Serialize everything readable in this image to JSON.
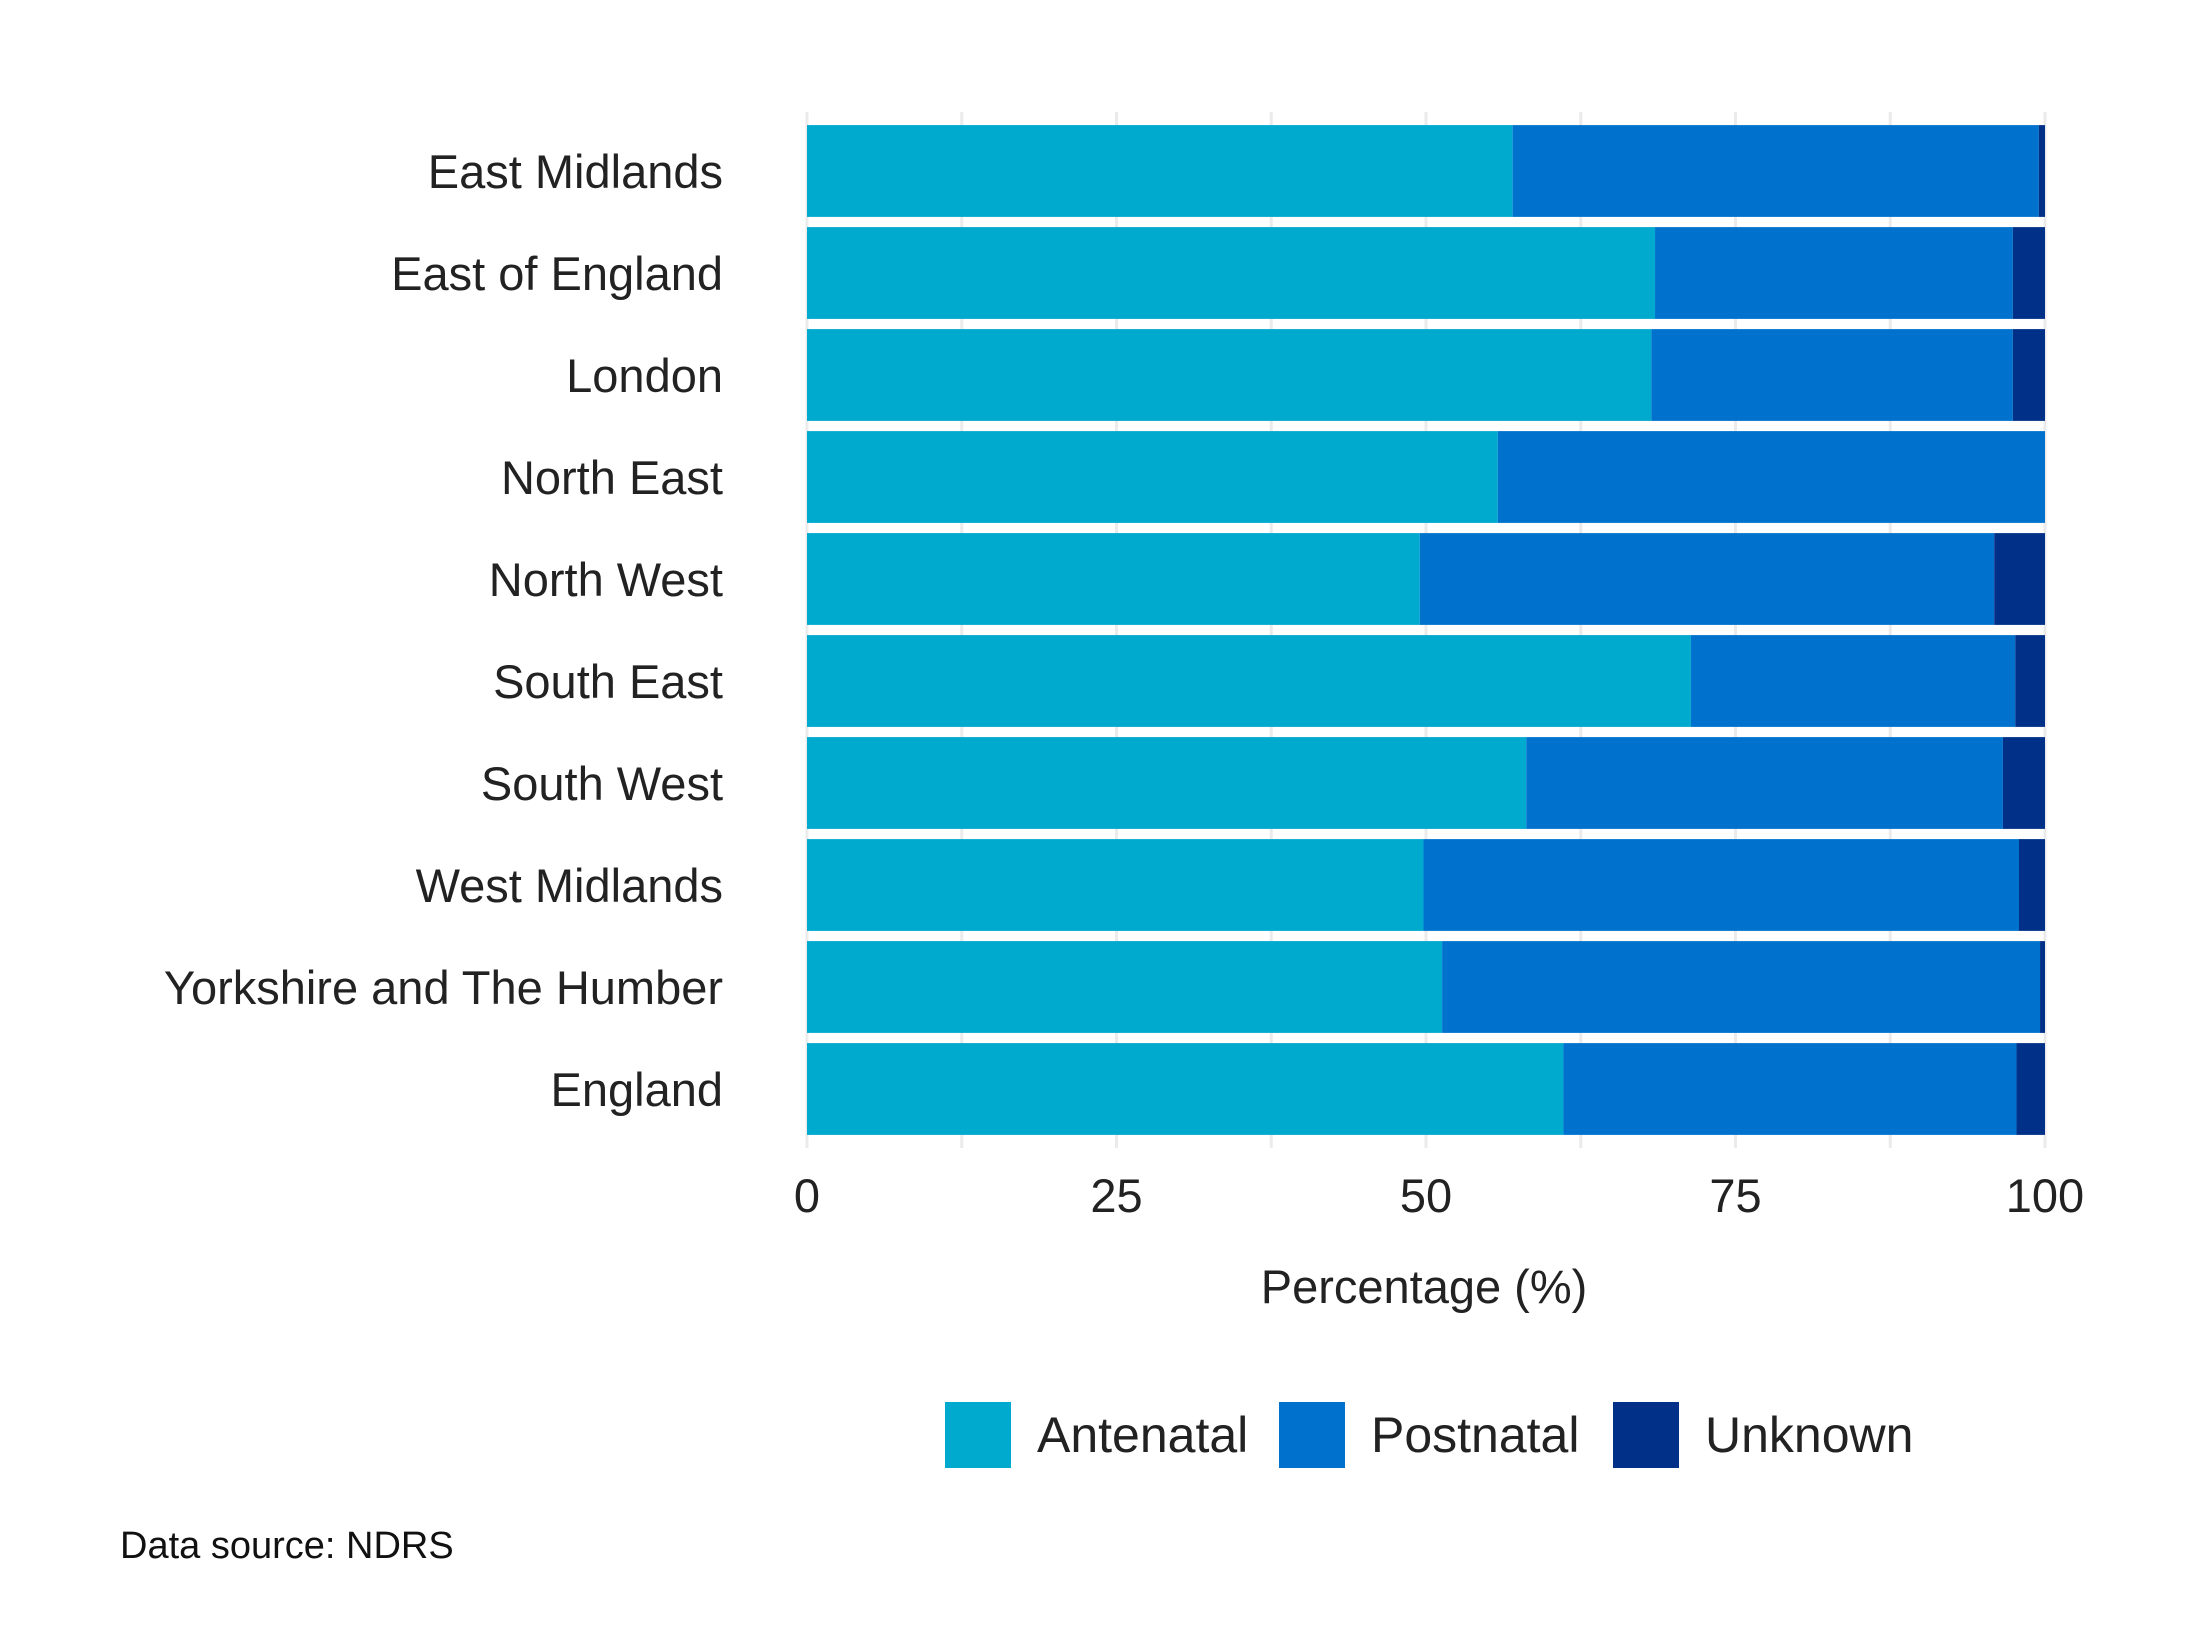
{
  "chart_data": {
    "type": "bar",
    "orientation": "horizontal",
    "stacked": true,
    "title": "",
    "xlabel": "Percentage (%)",
    "ylabel": "",
    "xlim": [
      0,
      100
    ],
    "x_ticks": [
      0,
      25,
      50,
      75,
      100
    ],
    "categories": [
      "East Midlands",
      "East of England",
      "London",
      "North East",
      "North West",
      "South East",
      "South West",
      "West Midlands",
      "Yorkshire and The Humber",
      "England"
    ],
    "series": [
      {
        "name": "Antenatal",
        "color": "#00a9ce",
        "values": [
          57.0,
          68.5,
          68.2,
          55.8,
          49.5,
          71.4,
          58.1,
          49.8,
          51.3,
          61.1
        ]
      },
      {
        "name": "Postnatal",
        "color": "#0072ce",
        "values": [
          42.5,
          28.9,
          29.2,
          44.2,
          46.4,
          26.2,
          38.5,
          48.1,
          48.3,
          36.6
        ]
      },
      {
        "name": "Unknown",
        "color": "#003087",
        "values": [
          0.5,
          2.6,
          2.6,
          0.0,
          4.1,
          2.4,
          3.4,
          2.1,
          0.4,
          2.3
        ]
      }
    ],
    "grid": true,
    "legend_position": "bottom"
  },
  "caption": "Data source: NDRS"
}
